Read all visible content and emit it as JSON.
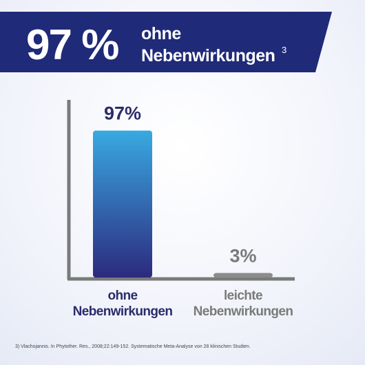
{
  "chart_data": {
    "type": "bar",
    "title": "97 %",
    "subtitle": "ohne Nebenwirkungen",
    "subtitle_note": "3",
    "categories": [
      "ohne Nebenwirkungen",
      "leichte Nebenwirkungen"
    ],
    "values": [
      97,
      3
    ],
    "value_labels": [
      "97%",
      "3%"
    ],
    "colors": [
      "#2f6fc4",
      "#8c8c8c"
    ],
    "ylim": [
      0,
      100
    ],
    "footnote": "3) Vlachojannis. In Phytother. Res., 2008;22:149-152. Systematische Meta-Analyse von 28 klinischen Studien."
  }
}
